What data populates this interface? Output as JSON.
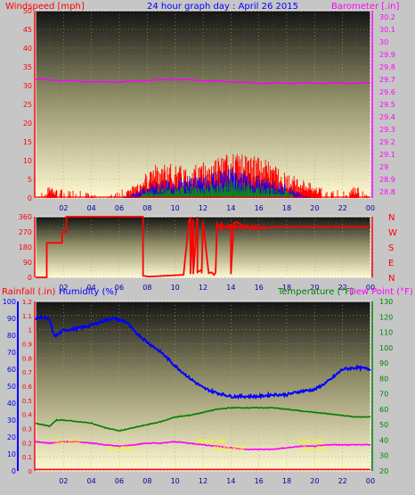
{
  "colors": {
    "page_bg": "#c6c6c6",
    "frame": "#ffffff",
    "grid": "#b8a070",
    "bg_top": "#141414",
    "bg_mid": "#8e8c66",
    "bg_bottom": "#fffad2",
    "wind": "#ff0000",
    "wind_avg": "#0000ff",
    "wind_low": "#00a000",
    "barometer": "#ff00ff",
    "direction": "#ff0000",
    "rainfall": "#ff0000",
    "humidity": "#0000ff",
    "temperature": "#008000",
    "dewpoint": "#ff00ff",
    "title": "#0000ff",
    "sun_label": "#ffff00",
    "xaxis_text": "#0000a0"
  },
  "header": {
    "wind_label": "Windspeed [mph]",
    "title": "24 hour graph day : April 26 2015",
    "baro_label": "Barometer [.in]"
  },
  "lower_labels": {
    "rain": "Rainfall (.in)",
    "humidity": "Humidity (%)",
    "temperature": "Temperature (°F)",
    "dewpoint": "Dew Point (°F)"
  },
  "chart_data": [
    {
      "type": "line",
      "id": "wind_baro",
      "x_ticks": [
        "02",
        "04",
        "06",
        "08",
        "10",
        "12",
        "14",
        "16",
        "18",
        "20",
        "22",
        "00"
      ],
      "y_left": {
        "label": "Windspeed [mph]",
        "ticks": [
          "50",
          "45",
          "40",
          "35",
          "30",
          "25",
          "20",
          "15",
          "10",
          "5",
          "0"
        ],
        "ylim": [
          0,
          50
        ]
      },
      "y_right": {
        "label": "Barometer [.in]",
        "ticks": [
          "30.2",
          "30.1",
          "30",
          "29.9",
          "29.8",
          "29.7",
          "29.6",
          "29.5",
          "29.4",
          "29.3",
          "29.2",
          "29.1",
          "29",
          "28.9",
          "28.8"
        ],
        "ylim": [
          28.75,
          30.25
        ]
      },
      "series": [
        {
          "name": "Barometer",
          "axis": "right",
          "x": [
            0,
            2,
            4,
            6,
            8,
            10,
            12,
            14,
            16,
            18,
            20,
            22,
            24
          ],
          "values": [
            29.7,
            29.69,
            29.68,
            29.68,
            29.69,
            29.7,
            29.69,
            29.68,
            29.67,
            29.67,
            29.67,
            29.67,
            29.67
          ]
        },
        {
          "name": "Wind gust envelope",
          "axis": "left",
          "x": [
            0,
            1,
            2,
            3,
            4,
            5,
            6,
            7,
            8,
            9,
            10,
            11,
            12,
            13,
            14,
            15,
            16,
            17,
            18,
            19,
            20,
            21,
            22,
            23,
            24
          ],
          "values": [
            0,
            3,
            2,
            2,
            1,
            0,
            2,
            3,
            7,
            9,
            8,
            8,
            9,
            10,
            11,
            11,
            10,
            9,
            6,
            5,
            3,
            2,
            2,
            3,
            0
          ]
        },
        {
          "name": "Wind average envelope",
          "axis": "left",
          "x": [
            0,
            2,
            4,
            6,
            7,
            8,
            9,
            10,
            11,
            12,
            13,
            14,
            15,
            16,
            17,
            18,
            19,
            20,
            22,
            24
          ],
          "values": [
            0,
            0,
            0,
            0,
            1,
            3,
            4,
            4,
            5,
            5,
            6,
            7,
            6,
            5,
            4,
            3,
            1,
            0,
            0,
            0
          ]
        }
      ]
    },
    {
      "type": "line",
      "id": "wind_direction",
      "x_ticks": [
        "02",
        "04",
        "06",
        "08",
        "10",
        "12",
        "14",
        "16",
        "18",
        "20",
        "22",
        "00"
      ],
      "y_left": {
        "ticks": [
          "360",
          "270",
          "180",
          "90",
          "0"
        ],
        "ylim": [
          0,
          360
        ]
      },
      "y_right": {
        "ticks": [
          "N",
          "W",
          "S",
          "E",
          "N"
        ]
      },
      "series": [
        {
          "name": "Wind direction",
          "x": [
            0,
            0.8,
            0.8,
            1.9,
            1.9,
            2.2,
            2.2,
            7.7,
            7.7,
            8.1,
            10.6,
            11.0,
            11.1,
            11.1,
            11.3,
            11.3,
            11.6,
            11.6,
            11.9,
            11.9,
            12.0,
            12.4,
            12.6,
            12.8,
            12.9,
            13.0,
            13.2,
            13.3,
            13.4,
            13.8,
            14.0,
            14.0,
            14.2,
            14.4,
            14.6,
            15.0,
            15.5,
            16.0,
            17.0,
            18.0,
            20.0,
            22.0,
            24.0
          ],
          "values": [
            0,
            0,
            205,
            205,
            270,
            270,
            360,
            360,
            10,
            5,
            15,
            340,
            350,
            20,
            345,
            20,
            360,
            30,
            45,
            25,
            330,
            25,
            30,
            15,
            30,
            320,
            300,
            320,
            290,
            300,
            310,
            20,
            320,
            330,
            320,
            300,
            290,
            290,
            300,
            300,
            300,
            300,
            300
          ]
        }
      ]
    },
    {
      "type": "line",
      "id": "rain_hum_temp",
      "x_ticks": [
        "02",
        "04",
        "06",
        "08",
        "10",
        "12",
        "14",
        "16",
        "18",
        "20",
        "22",
        "00"
      ],
      "y_rain": {
        "label": "Rainfall (.in)",
        "ticks": [
          "1.2",
          "1.1",
          "1",
          "0.9",
          "0.8",
          "0.7",
          "0.6",
          "0.5",
          "0.4",
          "0.3",
          "0.2",
          "0.1",
          "0"
        ],
        "ylim": [
          0,
          1.2
        ]
      },
      "y_humidity": {
        "label": "Humidity (%)",
        "ticks": [
          "100",
          "90",
          "80",
          "70",
          "60",
          "50",
          "40",
          "30",
          "20",
          "10",
          "0"
        ],
        "ylim": [
          0,
          100
        ]
      },
      "y_temp": {
        "label": "Temperature (°F)",
        "ticks": [
          "130",
          "120",
          "110",
          "100",
          "90",
          "80",
          "70",
          "60",
          "50",
          "40",
          "30",
          "20"
        ],
        "ylim": [
          20,
          130
        ]
      },
      "series": [
        {
          "name": "Humidity",
          "axis": "humidity",
          "x": [
            0,
            0.5,
            1.0,
            1.3,
            1.5,
            2,
            3,
            4,
            5,
            5.5,
            6,
            6.5,
            7,
            8,
            9,
            10,
            11,
            12,
            13,
            14,
            15,
            16,
            17,
            18,
            19,
            20,
            21,
            22,
            23,
            24
          ],
          "values": [
            90,
            91,
            89,
            80,
            80,
            83,
            84,
            86,
            89,
            90,
            89,
            88,
            83,
            76,
            70,
            62,
            55,
            49,
            46,
            44,
            44,
            44,
            45,
            45,
            47,
            48,
            53,
            60,
            61,
            60
          ]
        },
        {
          "name": "Temperature",
          "axis": "temp",
          "x": [
            0,
            1,
            1.5,
            2,
            3,
            4,
            5,
            6,
            7,
            8,
            9,
            10,
            11,
            12,
            13,
            14,
            15,
            16,
            17,
            18,
            19,
            20,
            21,
            22,
            23,
            24
          ],
          "values": [
            51,
            49,
            53,
            53,
            52,
            51,
            48,
            46,
            48,
            50,
            52,
            55,
            56,
            58,
            60,
            61,
            61,
            61,
            61,
            60,
            59,
            58,
            57,
            56,
            55,
            55
          ]
        },
        {
          "name": "Dew Point",
          "axis": "temp",
          "x": [
            0,
            1,
            2,
            3,
            4,
            5,
            6,
            7,
            8,
            9,
            10,
            11,
            12,
            13,
            14,
            15,
            16,
            17,
            18,
            19,
            20,
            21,
            22,
            23,
            24
          ],
          "values": [
            39,
            38,
            39,
            39,
            38,
            37,
            36,
            37,
            38,
            38,
            39,
            38,
            37,
            36,
            35,
            34,
            34,
            34,
            35,
            36,
            36,
            37,
            37,
            37,
            37
          ]
        },
        {
          "name": "Rainfall",
          "axis": "rain",
          "x": [
            0,
            24
          ],
          "values": [
            0.01,
            0.01
          ]
        }
      ],
      "annotations": [
        {
          "text": "Sun Rise",
          "x_hour": 2.3
        },
        {
          "text": "Sun Rise",
          "x_hour": 6.1
        },
        {
          "text": "Moon Set",
          "x_hour": 12.6
        },
        {
          "text": "Moon Rise",
          "x_hour": 13.9
        },
        {
          "text": "Sun Set",
          "x_hour": 19.7
        },
        {
          "text": "Sun Set",
          "x_hour": 20.0
        }
      ]
    }
  ]
}
